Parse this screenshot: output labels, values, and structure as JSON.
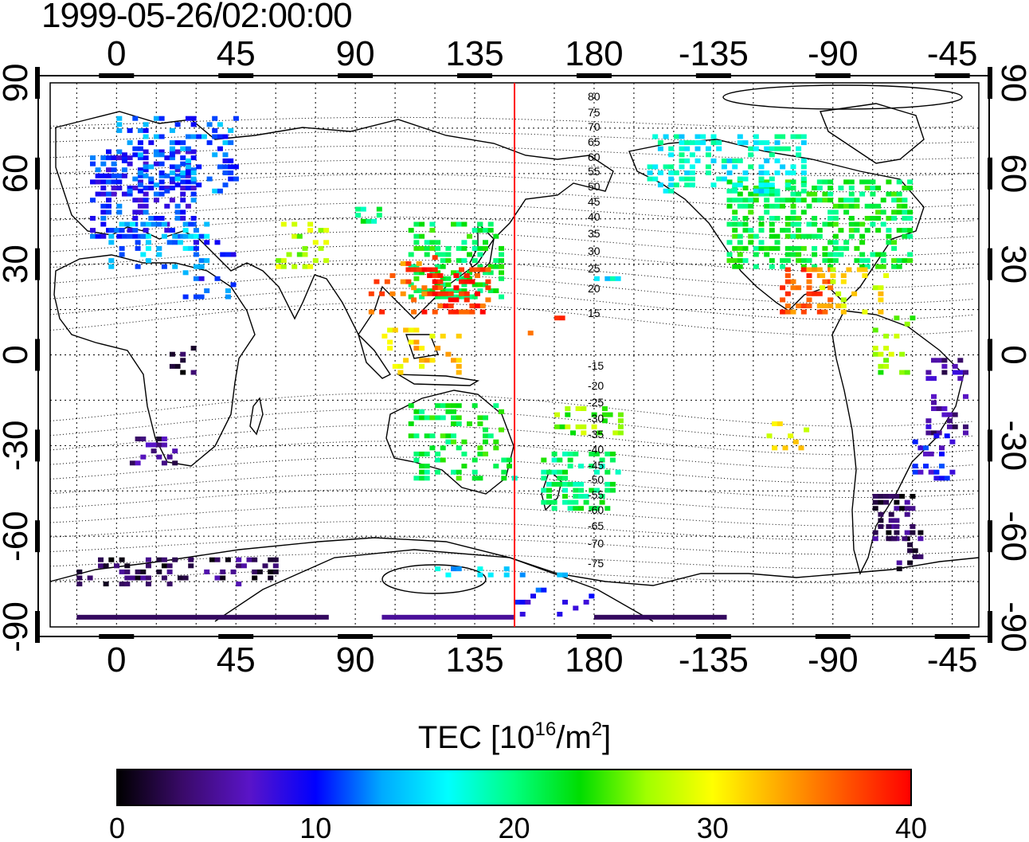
{
  "title": "1999-05-26/02:00:00",
  "colorbar": {
    "title_pre": "TEC  [10",
    "title_exp1": "16",
    "title_mid": "/m",
    "title_exp2": "2",
    "title_post": "]",
    "ticks": [
      "0",
      "10",
      "20",
      "30",
      "40"
    ],
    "stops": [
      "#000000",
      "#3a0a6a",
      "#5a14c8",
      "#0000ff",
      "#00aaff",
      "#00ffff",
      "#00ff80",
      "#00dd00",
      "#a0ff00",
      "#ffff00",
      "#ffaa00",
      "#ff5500",
      "#ff0000"
    ]
  },
  "axes": {
    "lon_ticks": [
      "0",
      "45",
      "90",
      "135",
      "180",
      "-135",
      "-90",
      "-45"
    ],
    "lat_ticks": [
      "90",
      "60",
      "30",
      "0",
      "-30",
      "-60",
      "-90"
    ],
    "contour_labels": [
      "80",
      "75",
      "70",
      "65",
      "60",
      "55",
      "50",
      "45",
      "40",
      "35",
      "30",
      "25",
      "20",
      "15",
      "-15",
      "-20",
      "-25",
      "-30",
      "-35",
      "-40",
      "-45",
      "-50",
      "-55",
      "-60",
      "-65",
      "-70",
      "-75"
    ]
  },
  "terminator_lon": 150,
  "colors": {
    "terminator": "#ff0000"
  }
}
